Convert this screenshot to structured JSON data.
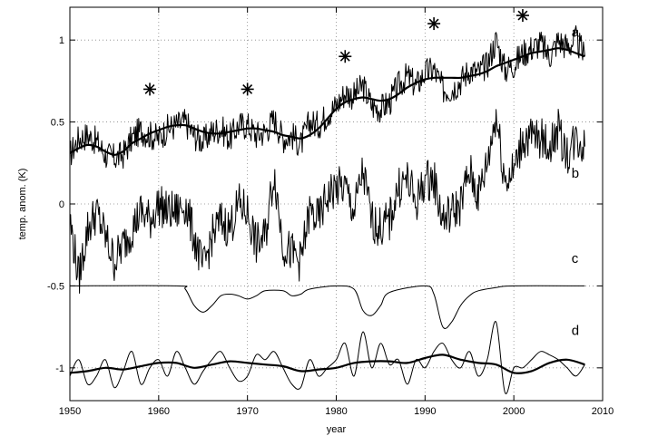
{
  "chart_data": {
    "type": "line",
    "xlabel": "year",
    "ylabel": "temp. anom. (K)",
    "xlim": [
      1950,
      2010
    ],
    "ylim": [
      -1.2,
      1.2
    ],
    "xticks": [
      1950,
      1960,
      1970,
      1980,
      1990,
      2000,
      2010
    ],
    "yticks": [
      1,
      0.5,
      0,
      -0.5,
      -1
    ],
    "ytick_labels": [
      "1",
      "0.5",
      "0",
      "-0.5",
      "-1"
    ],
    "grid": true,
    "series_labels": [
      "a",
      "b",
      "c",
      "d"
    ],
    "markers": {
      "symbol": "asterisk",
      "points": [
        {
          "x": 1959,
          "y": 0.7
        },
        {
          "x": 1970,
          "y": 0.7
        },
        {
          "x": 1981,
          "y": 0.9
        },
        {
          "x": 1991,
          "y": 1.1
        },
        {
          "x": 2001,
          "y": 1.15
        }
      ]
    },
    "series": [
      {
        "name": "a",
        "style": "noisy",
        "x": [
          1950,
          1951,
          1952,
          1953,
          1954,
          1955,
          1956,
          1957,
          1958,
          1959,
          1960,
          1961,
          1962,
          1963,
          1964,
          1965,
          1966,
          1967,
          1968,
          1969,
          1970,
          1971,
          1972,
          1973,
          1974,
          1975,
          1976,
          1977,
          1978,
          1979,
          1980,
          1981,
          1982,
          1983,
          1984,
          1985,
          1986,
          1987,
          1988,
          1989,
          1990,
          1991,
          1992,
          1993,
          1994,
          1995,
          1996,
          1997,
          1998,
          1999,
          2000,
          2001,
          2002,
          2003,
          2004,
          2005,
          2006,
          2007,
          2008
        ],
        "values": [
          0.3,
          0.4,
          0.42,
          0.38,
          0.3,
          0.28,
          0.3,
          0.4,
          0.45,
          0.42,
          0.4,
          0.46,
          0.48,
          0.5,
          0.42,
          0.38,
          0.44,
          0.46,
          0.4,
          0.48,
          0.48,
          0.42,
          0.44,
          0.52,
          0.4,
          0.42,
          0.36,
          0.5,
          0.48,
          0.55,
          0.6,
          0.68,
          0.66,
          0.72,
          0.6,
          0.58,
          0.62,
          0.72,
          0.78,
          0.72,
          0.8,
          0.82,
          0.7,
          0.7,
          0.75,
          0.82,
          0.8,
          0.85,
          1.0,
          0.82,
          0.85,
          0.92,
          0.95,
          0.98,
          0.9,
          1.0,
          0.96,
          1.0,
          0.9
        ]
      },
      {
        "name": "a-smooth",
        "style": "smooth",
        "x": [
          1950,
          1951,
          1952,
          1953,
          1954,
          1955,
          1956,
          1957,
          1958,
          1959,
          1960,
          1961,
          1962,
          1963,
          1964,
          1965,
          1966,
          1967,
          1968,
          1969,
          1970,
          1971,
          1972,
          1973,
          1974,
          1975,
          1976,
          1977,
          1978,
          1979,
          1980,
          1981,
          1982,
          1983,
          1984,
          1985,
          1986,
          1987,
          1988,
          1989,
          1990,
          1991,
          1992,
          1993,
          1994,
          1995,
          1996,
          1997,
          1998,
          1999,
          2000,
          2001,
          2002,
          2003,
          2004,
          2005,
          2006,
          2007,
          2008
        ],
        "values": [
          0.31,
          0.34,
          0.36,
          0.35,
          0.32,
          0.3,
          0.32,
          0.37,
          0.4,
          0.43,
          0.45,
          0.47,
          0.48,
          0.48,
          0.46,
          0.44,
          0.43,
          0.43,
          0.44,
          0.45,
          0.46,
          0.46,
          0.45,
          0.44,
          0.42,
          0.41,
          0.4,
          0.42,
          0.46,
          0.52,
          0.58,
          0.62,
          0.64,
          0.65,
          0.64,
          0.63,
          0.64,
          0.67,
          0.71,
          0.74,
          0.76,
          0.77,
          0.77,
          0.77,
          0.77,
          0.78,
          0.79,
          0.81,
          0.84,
          0.86,
          0.88,
          0.9,
          0.92,
          0.93,
          0.94,
          0.95,
          0.94,
          0.92,
          0.9
        ]
      },
      {
        "name": "b",
        "style": "noisy",
        "x": [
          1950,
          1951,
          1952,
          1953,
          1954,
          1955,
          1956,
          1957,
          1958,
          1959,
          1960,
          1961,
          1962,
          1963,
          1964,
          1965,
          1966,
          1967,
          1968,
          1969,
          1970,
          1971,
          1972,
          1973,
          1974,
          1975,
          1976,
          1977,
          1978,
          1979,
          1980,
          1981,
          1982,
          1983,
          1984,
          1985,
          1986,
          1987,
          1988,
          1989,
          1990,
          1991,
          1992,
          1993,
          1994,
          1995,
          1996,
          1997,
          1998,
          1999,
          2000,
          2001,
          2002,
          2003,
          2004,
          2005,
          2006,
          2007,
          2008
        ],
        "values": [
          -0.1,
          -0.45,
          -0.15,
          -0.05,
          -0.2,
          -0.35,
          -0.25,
          -0.15,
          -0.05,
          -0.1,
          0.0,
          -0.05,
          -0.05,
          0.0,
          -0.2,
          -0.4,
          -0.2,
          -0.1,
          -0.15,
          0.0,
          -0.05,
          -0.25,
          -0.2,
          0.2,
          -0.25,
          -0.3,
          -0.35,
          -0.05,
          -0.1,
          0.05,
          0.1,
          0.1,
          -0.05,
          0.2,
          -0.1,
          -0.15,
          -0.1,
          0.1,
          0.15,
          0.0,
          0.15,
          0.15,
          -0.1,
          -0.05,
          0.0,
          0.2,
          0.05,
          0.25,
          0.55,
          0.15,
          0.2,
          0.4,
          0.4,
          0.4,
          0.35,
          0.45,
          0.3,
          0.4,
          0.35
        ]
      },
      {
        "name": "c",
        "style": "thin",
        "x": [
          1950,
          1962,
          1963,
          1964,
          1965,
          1966,
          1967,
          1968,
          1969,
          1970,
          1971,
          1972,
          1974,
          1975,
          1976,
          1977,
          1980,
          1982,
          1983,
          1984,
          1985,
          1986,
          1990,
          1991,
          1992,
          1993,
          1994,
          1995,
          1996,
          1998,
          2000,
          2008
        ],
        "values": [
          -0.5,
          -0.5,
          -0.52,
          -0.62,
          -0.66,
          -0.62,
          -0.56,
          -0.55,
          -0.56,
          -0.58,
          -0.56,
          -0.53,
          -0.53,
          -0.56,
          -0.55,
          -0.52,
          -0.5,
          -0.52,
          -0.65,
          -0.68,
          -0.62,
          -0.54,
          -0.5,
          -0.55,
          -0.75,
          -0.72,
          -0.62,
          -0.56,
          -0.53,
          -0.51,
          -0.5,
          -0.5
        ]
      },
      {
        "name": "d",
        "style": "thin",
        "x": [
          1950,
          1951,
          1952,
          1953,
          1954,
          1955,
          1956,
          1957,
          1958,
          1959,
          1960,
          1961,
          1962,
          1963,
          1964,
          1965,
          1966,
          1967,
          1968,
          1969,
          1970,
          1971,
          1972,
          1973,
          1974,
          1975,
          1976,
          1977,
          1978,
          1979,
          1980,
          1981,
          1982,
          1983,
          1984,
          1985,
          1986,
          1987,
          1988,
          1989,
          1990,
          1991,
          1992,
          1993,
          1994,
          1995,
          1996,
          1997,
          1998,
          1999,
          2000,
          2001,
          2002,
          2003,
          2004,
          2005,
          2006,
          2007,
          2008
        ],
        "values": [
          -1.05,
          -0.95,
          -1.1,
          -1.05,
          -0.95,
          -1.12,
          -1.02,
          -0.9,
          -1.1,
          -1.0,
          -0.95,
          -1.05,
          -0.9,
          -1.0,
          -1.1,
          -1.02,
          -0.95,
          -0.9,
          -1.0,
          -1.08,
          -1.05,
          -0.92,
          -0.95,
          -0.9,
          -1.0,
          -1.1,
          -1.12,
          -0.95,
          -1.05,
          -1.0,
          -0.95,
          -0.85,
          -1.05,
          -0.78,
          -1.0,
          -0.85,
          -0.98,
          -0.95,
          -1.1,
          -0.95,
          -1.0,
          -0.9,
          -0.85,
          -0.95,
          -1.0,
          -0.9,
          -1.05,
          -0.95,
          -0.72,
          -1.15,
          -1.0,
          -1.0,
          -0.95,
          -0.9,
          -0.92,
          -0.95,
          -1.0,
          -1.05,
          -0.98
        ]
      },
      {
        "name": "d-smooth",
        "style": "smooth",
        "x": [
          1950,
          1952,
          1954,
          1956,
          1958,
          1960,
          1962,
          1964,
          1966,
          1968,
          1970,
          1972,
          1974,
          1976,
          1978,
          1980,
          1982,
          1984,
          1986,
          1988,
          1990,
          1992,
          1994,
          1996,
          1998,
          2000,
          2002,
          2004,
          2006,
          2008
        ],
        "values": [
          -1.03,
          -1.02,
          -1.0,
          -1.01,
          -0.99,
          -0.97,
          -0.97,
          -1.0,
          -0.98,
          -0.96,
          -0.97,
          -0.98,
          -0.99,
          -1.02,
          -1.01,
          -1.0,
          -0.97,
          -0.96,
          -0.96,
          -0.97,
          -0.94,
          -0.92,
          -0.95,
          -0.97,
          -0.98,
          -1.03,
          -1.02,
          -0.97,
          -0.95,
          -0.98
        ]
      }
    ]
  }
}
